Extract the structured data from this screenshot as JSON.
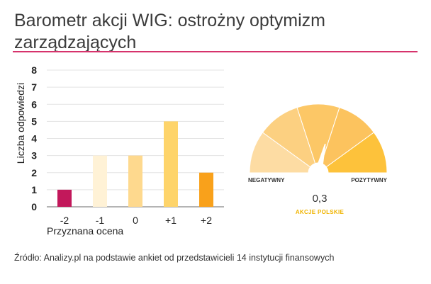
{
  "title": "Barometr akcji WIG: ostrożny optymizm zarządzających",
  "source": "Źródło: Analizy.pl na podstawie ankiet od przedstawicieli 14 instytucji finansowych",
  "chart_data": [
    {
      "type": "bar",
      "categories": [
        "-2",
        "-1",
        "0",
        "+1",
        "+2"
      ],
      "values": [
        1,
        3,
        3,
        5,
        2
      ],
      "colors": [
        "#c2185b",
        "#fff2d6",
        "#fed98e",
        "#fed46a",
        "#f9a11b"
      ],
      "xlabel": "Przyznana ocena",
      "ylabel": "Liczba odpowiedzi",
      "ylim": [
        0,
        8
      ],
      "yticks": [
        "0",
        "1",
        "2",
        "3",
        "4",
        "5",
        "6",
        "7",
        "8"
      ],
      "grid": true
    },
    {
      "type": "gauge",
      "value": 0.3,
      "value_label": "0,3",
      "range": [
        -2,
        2
      ],
      "segment_colors": [
        "#fddca3",
        "#fcd081",
        "#fcc766",
        "#fcc35e",
        "#fdc23b"
      ],
      "left_label": "NEGATYWNY",
      "right_label": "POZYTYWNY",
      "caption": "AKCJE POLSKIE"
    }
  ]
}
